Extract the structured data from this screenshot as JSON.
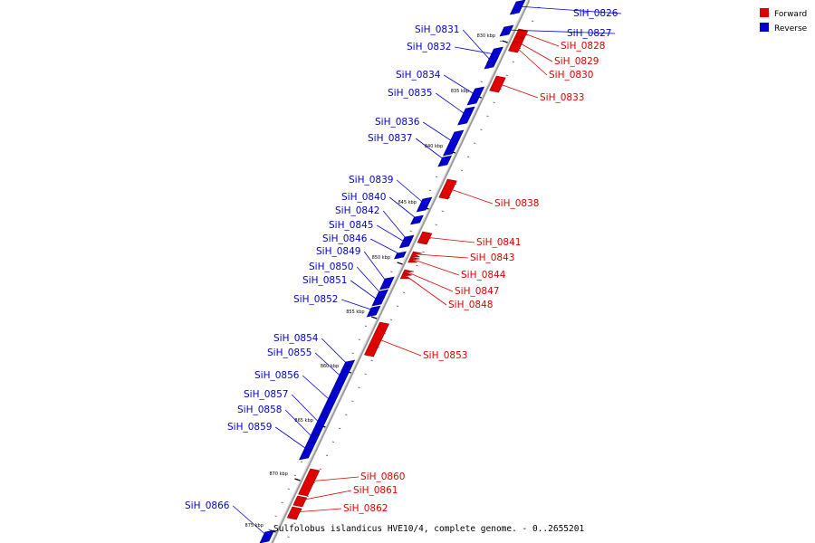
{
  "caption": "Sulfolobus islandicus HVE10/4, complete genome. - 0..2655201",
  "legend": [
    {
      "label": "Forward",
      "color": "#e00000"
    },
    {
      "label": "Reverse",
      "color": "#0000d0"
    }
  ],
  "tick_labels": [
    "830 kbp",
    "835 kbp",
    "840 kbp",
    "845 kbp",
    "850 kbp",
    "855 kbp",
    "860 kbp",
    "865 kbp",
    "870 kbp",
    "875 kbp"
  ],
  "genes": [
    {
      "name": "SiH_0826",
      "strand": "reverse"
    },
    {
      "name": "SiH_0827",
      "strand": "reverse"
    },
    {
      "name": "SiH_0828",
      "strand": "forward"
    },
    {
      "name": "SiH_0829",
      "strand": "forward"
    },
    {
      "name": "SiH_0830",
      "strand": "forward"
    },
    {
      "name": "SiH_0831",
      "strand": "reverse"
    },
    {
      "name": "SiH_0832",
      "strand": "reverse"
    },
    {
      "name": "SiH_0833",
      "strand": "forward"
    },
    {
      "name": "SiH_0834",
      "strand": "reverse"
    },
    {
      "name": "SiH_0835",
      "strand": "reverse"
    },
    {
      "name": "SiH_0836",
      "strand": "reverse"
    },
    {
      "name": "SiH_0837",
      "strand": "reverse"
    },
    {
      "name": "SiH_0838",
      "strand": "forward"
    },
    {
      "name": "SiH_0839",
      "strand": "reverse"
    },
    {
      "name": "SiH_0840",
      "strand": "reverse"
    },
    {
      "name": "SiH_0841",
      "strand": "forward"
    },
    {
      "name": "SiH_0842",
      "strand": "reverse"
    },
    {
      "name": "SiH_0843",
      "strand": "forward"
    },
    {
      "name": "SiH_0844",
      "strand": "forward"
    },
    {
      "name": "SiH_0845",
      "strand": "reverse"
    },
    {
      "name": "SiH_0846",
      "strand": "reverse"
    },
    {
      "name": "SiH_0847",
      "strand": "forward"
    },
    {
      "name": "SiH_0848",
      "strand": "forward"
    },
    {
      "name": "SiH_0849",
      "strand": "reverse"
    },
    {
      "name": "SiH_0850",
      "strand": "reverse"
    },
    {
      "name": "SiH_0851",
      "strand": "reverse"
    },
    {
      "name": "SiH_0852",
      "strand": "reverse"
    },
    {
      "name": "SiH_0853",
      "strand": "forward"
    },
    {
      "name": "SiH_0854",
      "strand": "reverse"
    },
    {
      "name": "SiH_0855",
      "strand": "reverse"
    },
    {
      "name": "SiH_0856",
      "strand": "reverse"
    },
    {
      "name": "SiH_0857",
      "strand": "reverse"
    },
    {
      "name": "SiH_0858",
      "strand": "reverse"
    },
    {
      "name": "SiH_0859",
      "strand": "reverse"
    },
    {
      "name": "SiH_0860",
      "strand": "forward"
    },
    {
      "name": "SiH_0861",
      "strand": "forward"
    },
    {
      "name": "SiH_0862",
      "strand": "forward"
    },
    {
      "name": "SiH_0866",
      "strand": "reverse"
    }
  ]
}
